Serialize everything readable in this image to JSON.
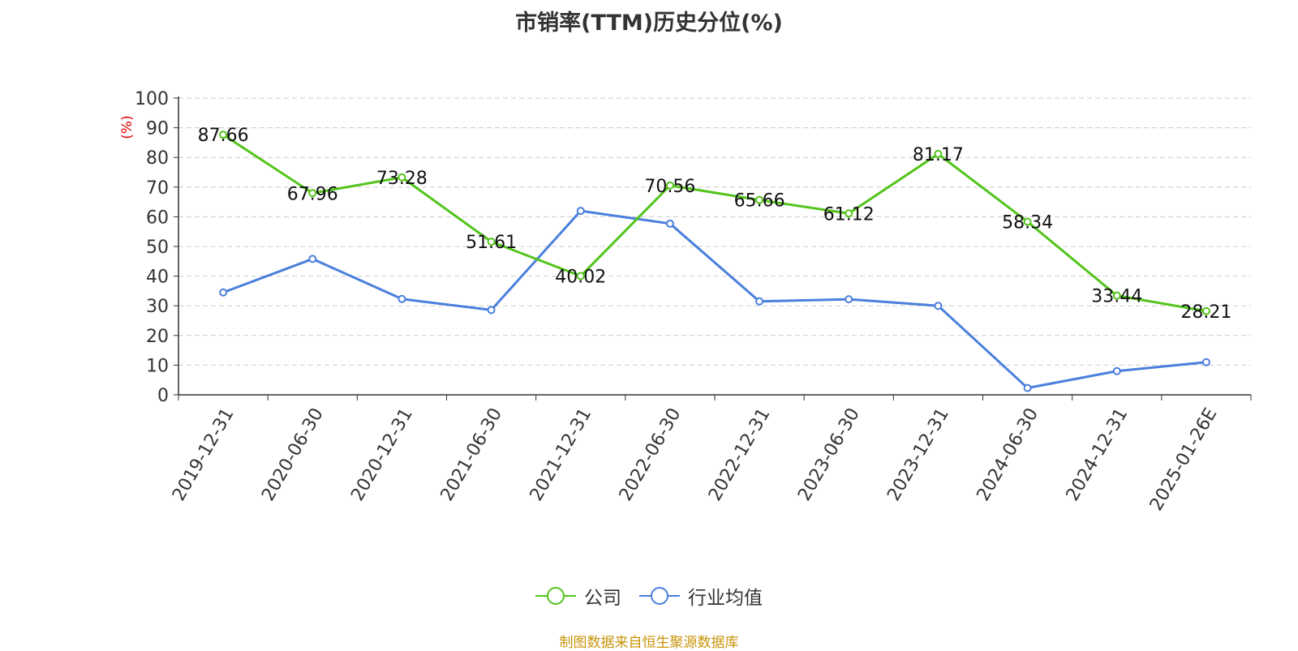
{
  "chart_data": {
    "type": "line",
    "title": "市销率(TTM)历史分位(%)",
    "ylabel": "(%)",
    "xlabel": "",
    "ylim": [
      0,
      100
    ],
    "yticks": [
      0,
      10,
      20,
      30,
      40,
      50,
      60,
      70,
      80,
      90,
      100
    ],
    "grid": true,
    "legend_position": "bottom-center",
    "categories": [
      "2019-12-31",
      "2020-06-30",
      "2020-12-31",
      "2021-06-30",
      "2021-12-31",
      "2022-06-30",
      "2022-12-31",
      "2023-06-30",
      "2023-12-31",
      "2024-06-30",
      "2024-12-31",
      "2025-01-26E"
    ],
    "series": [
      {
        "name": "公司",
        "color": "#52c41a",
        "values": [
          87.66,
          67.96,
          73.28,
          51.61,
          40.02,
          70.56,
          65.66,
          61.12,
          81.17,
          58.34,
          33.44,
          28.21
        ],
        "labels": [
          "87.66",
          "67.96",
          "73.28",
          "51.61",
          "40.02",
          "70.56",
          "65.66",
          "61.12",
          "81.17",
          "58.34",
          "33.44",
          "28.21"
        ]
      },
      {
        "name": "行业均值",
        "color": "#4a7fdc",
        "values": [
          34.5,
          45.8,
          32.3,
          28.6,
          62.0,
          57.7,
          31.5,
          32.2,
          30.0,
          2.3,
          8.0,
          11.0
        ]
      }
    ]
  },
  "source_note": "制图数据来自恒生聚源数据库"
}
